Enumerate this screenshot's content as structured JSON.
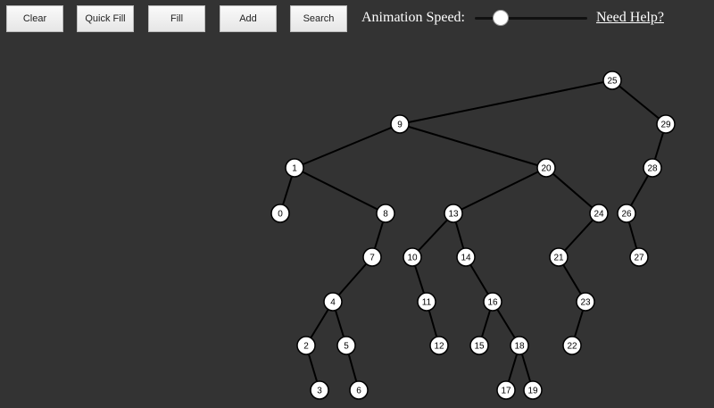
{
  "toolbar": {
    "buttons": [
      "Clear",
      "Quick Fill",
      "Fill",
      "Add",
      "Search"
    ],
    "speed_label": "Animation Speed:",
    "speed_value": 0.23,
    "help_link": "Need Help?"
  },
  "tree": {
    "root": 25,
    "edges": [
      [
        25,
        9
      ],
      [
        25,
        29
      ],
      [
        9,
        1
      ],
      [
        9,
        20
      ],
      [
        29,
        28
      ],
      [
        1,
        0
      ],
      [
        1,
        8
      ],
      [
        20,
        13
      ],
      [
        20,
        24
      ],
      [
        28,
        26
      ],
      [
        8,
        7
      ],
      [
        13,
        10
      ],
      [
        13,
        14
      ],
      [
        24,
        21
      ],
      [
        26,
        27
      ],
      [
        7,
        4
      ],
      [
        10,
        11
      ],
      [
        14,
        16
      ],
      [
        21,
        23
      ],
      [
        4,
        2
      ],
      [
        4,
        5
      ],
      [
        11,
        12
      ],
      [
        16,
        15
      ],
      [
        16,
        18
      ],
      [
        23,
        22
      ],
      [
        2,
        3
      ],
      [
        5,
        6
      ],
      [
        18,
        17
      ],
      [
        18,
        19
      ]
    ]
  }
}
